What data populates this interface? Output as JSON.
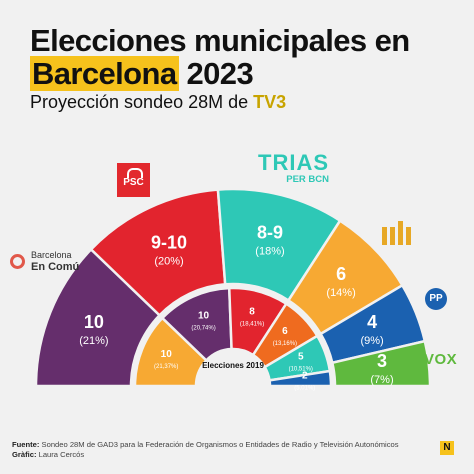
{
  "header": {
    "title_line1": "Elecciones municipales en",
    "title_highlight": "Barcelona",
    "title_year": "2023",
    "subtitle_main": "Proyección sondeo 28M de",
    "subtitle_brand": "TV3"
  },
  "logos": {
    "bcomu_line1": "Barcelona",
    "bcomu_line2": "En Comú",
    "psc": "PSC",
    "trias_line1": "TRIAS",
    "trias_line2": "PER BCN",
    "pp": "PP",
    "vox": "VOX"
  },
  "footer": {
    "source_label": "Fuente:",
    "source_text": "Sondeo 28M de GAD3 para la Federación de Organismos o Entidades de Radio y Televisión Autonómicos",
    "graphic_label": "Gràfic:",
    "graphic_text": "Laura Cercós",
    "logo_letter": "N"
  },
  "chart_data": [
    {
      "type": "pie",
      "layout": "parliament-semicircle-outer",
      "label": "",
      "colors": [
        "#652e6c",
        "#e2242e",
        "#2ec8b6",
        "#f7a933",
        "#1b61b0",
        "#5fb93e"
      ],
      "slices": [
        {
          "party": "BComú",
          "value": 10,
          "label": "10",
          "sub": "(21%)"
        },
        {
          "party": "PSC",
          "value": 9.5,
          "label": "9-10",
          "sub": "(20%)"
        },
        {
          "party": "Trias",
          "value": 8.5,
          "label": "8-9",
          "sub": "(18%)"
        },
        {
          "party": "ERC",
          "value": 6,
          "label": "6",
          "sub": "(14%)"
        },
        {
          "party": "PP",
          "value": 4,
          "label": "4",
          "sub": "(9%)"
        },
        {
          "party": "VOX",
          "value": 3,
          "label": "3",
          "sub": "(7%)"
        }
      ]
    },
    {
      "type": "pie",
      "layout": "parliament-semicircle-inner",
      "label": "Elecciones 2019",
      "colors": [
        "#f7a933",
        "#652e6c",
        "#e2242e",
        "#ef6b1f",
        "#2ec8b6",
        "#1b61b0"
      ],
      "slices": [
        {
          "value": 10,
          "label": "10",
          "sub": "(21,37%)"
        },
        {
          "value": 10,
          "label": "10",
          "sub": "(20,74%)"
        },
        {
          "value": 8,
          "label": "8",
          "sub": "(18,41%)"
        },
        {
          "value": 6,
          "label": "6",
          "sub": "(13,16%)"
        },
        {
          "value": 5,
          "label": "5",
          "sub": "(10,51%)"
        },
        {
          "value": 2,
          "label": "2",
          "sub": "(5,01%)"
        }
      ]
    }
  ]
}
